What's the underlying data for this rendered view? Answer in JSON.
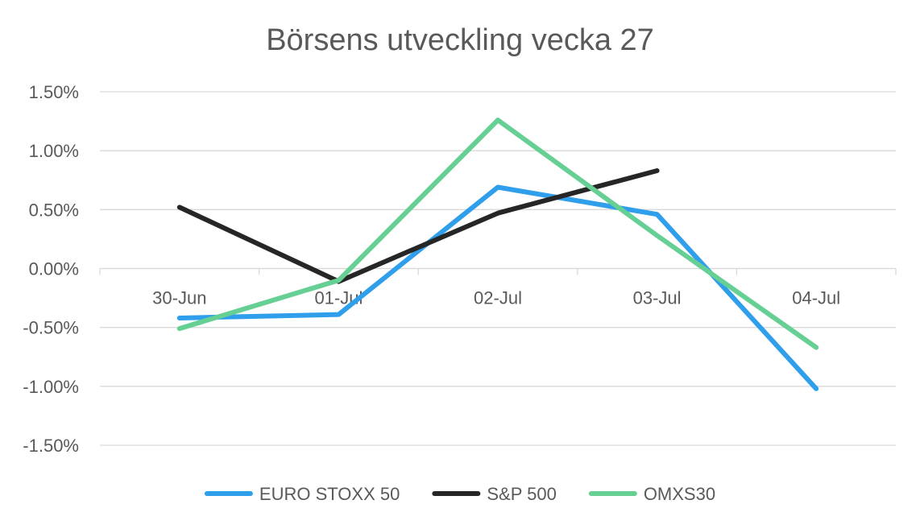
{
  "chart_data": {
    "type": "line",
    "title": "Börsens utveckling vecka 27",
    "categories": [
      "30-Jun",
      "01-Jul",
      "02-Jul",
      "03-Jul",
      "04-Jul"
    ],
    "y_ticks": [
      "1.50%",
      "1.00%",
      "0.50%",
      "0.00%",
      "-0.50%",
      "-1.00%",
      "-1.50%"
    ],
    "ylim": [
      -1.5,
      1.5
    ],
    "y_unit": "%",
    "grid": true,
    "legend_position": "bottom",
    "series": [
      {
        "name": "EURO STOXX 50",
        "color": "#2f9fec",
        "values": [
          -0.42,
          -0.39,
          0.69,
          0.46,
          -1.02
        ]
      },
      {
        "name": "S&P 500",
        "color": "#262626",
        "values": [
          0.52,
          -0.11,
          0.47,
          0.83,
          null
        ]
      },
      {
        "name": "OMXS30",
        "color": "#66cf94",
        "values": [
          -0.51,
          -0.1,
          1.26,
          0.28,
          -0.67
        ]
      }
    ]
  }
}
